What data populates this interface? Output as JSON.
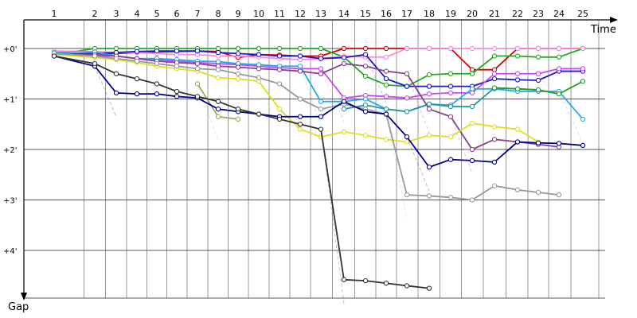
{
  "chart_data": {
    "type": "line",
    "xlabel": "Time",
    "ylabel": "Gap",
    "x_ticks": [
      "1",
      "2",
      "3",
      "4",
      "5",
      "6",
      "7",
      "8",
      "9",
      "10",
      "11",
      "12",
      "13",
      "14",
      "15",
      "16",
      "17",
      "18",
      "19",
      "20",
      "21",
      "22",
      "23",
      "24",
      "25"
    ],
    "y_ticks": [
      "+0'",
      "+1'",
      "+2'",
      "+3'",
      "+4'"
    ],
    "ylim": [
      0,
      5
    ],
    "grid": true,
    "series": [
      {
        "color": "#dd0000",
        "points": [
          [
            1,
            0.12
          ],
          [
            2,
            0.1
          ],
          [
            3,
            0.1
          ],
          [
            4,
            0.08
          ],
          [
            5,
            0.07
          ],
          [
            6,
            0.06
          ],
          [
            7,
            0.05
          ],
          [
            8,
            0.06
          ],
          [
            9,
            0.18
          ],
          [
            10,
            0.12
          ],
          [
            11,
            0.13
          ],
          [
            12,
            0.15
          ],
          [
            13,
            0.15
          ],
          [
            14,
            0.0
          ],
          [
            15,
            0.0
          ],
          [
            16,
            0.0
          ],
          [
            17,
            0.0
          ],
          [
            18,
            0.0
          ],
          [
            19,
            0.0
          ],
          [
            20,
            0.42
          ],
          [
            21,
            0.42
          ],
          [
            22,
            0.0
          ],
          [
            23,
            0.0
          ],
          [
            24,
            0.0
          ],
          [
            25,
            0.0
          ]
        ]
      },
      {
        "color": "#22aa22",
        "points": [
          [
            1,
            0.12
          ],
          [
            2,
            0.0
          ],
          [
            3,
            0.0
          ],
          [
            4,
            0.0
          ],
          [
            5,
            0.0
          ],
          [
            6,
            0.0
          ],
          [
            7,
            0.0
          ],
          [
            8,
            0.0
          ],
          [
            9,
            0.0
          ],
          [
            10,
            0.0
          ],
          [
            11,
            0.0
          ],
          [
            12,
            0.0
          ],
          [
            13,
            0.0
          ],
          [
            14,
            0.17
          ],
          [
            15,
            0.55
          ],
          [
            16,
            0.72
          ],
          [
            17,
            0.75
          ],
          [
            18,
            0.52
          ],
          [
            19,
            0.5
          ],
          [
            20,
            0.5
          ],
          [
            21,
            0.15
          ],
          [
            22,
            0.15
          ],
          [
            23,
            0.17
          ],
          [
            24,
            0.17
          ],
          [
            25,
            0.0
          ]
        ]
      },
      {
        "color": "#ff88dd",
        "points": [
          [
            1,
            0.05
          ],
          [
            2,
            0.06
          ],
          [
            3,
            0.08
          ],
          [
            4,
            0.08
          ],
          [
            5,
            0.1
          ],
          [
            6,
            0.12
          ],
          [
            7,
            0.12
          ],
          [
            8,
            0.15
          ],
          [
            9,
            0.15
          ],
          [
            10,
            0.17
          ],
          [
            11,
            0.2
          ],
          [
            12,
            0.22
          ],
          [
            13,
            0.2
          ],
          [
            14,
            0.15
          ],
          [
            15,
            0.17
          ],
          [
            16,
            0.17
          ],
          [
            17,
            0.0
          ],
          [
            18,
            0.0
          ],
          [
            19,
            0.0
          ],
          [
            20,
            0.0
          ],
          [
            21,
            0.0
          ],
          [
            22,
            0.0
          ],
          [
            23,
            0.0
          ],
          [
            24,
            0.0
          ],
          [
            25,
            0.0
          ]
        ]
      },
      {
        "color": "#1a1acc",
        "points": [
          [
            1,
            0.12
          ],
          [
            2,
            0.1
          ],
          [
            3,
            0.08
          ],
          [
            4,
            0.06
          ],
          [
            5,
            0.05
          ],
          [
            6,
            0.05
          ],
          [
            7,
            0.05
          ],
          [
            8,
            0.08
          ],
          [
            9,
            0.1
          ],
          [
            10,
            0.12
          ],
          [
            11,
            0.15
          ],
          [
            12,
            0.15
          ],
          [
            13,
            0.2
          ],
          [
            14,
            0.18
          ],
          [
            15,
            0.12
          ],
          [
            16,
            0.6
          ],
          [
            17,
            0.75
          ],
          [
            18,
            0.75
          ],
          [
            19,
            0.75
          ],
          [
            20,
            0.75
          ],
          [
            21,
            0.6
          ],
          [
            22,
            0.62
          ],
          [
            23,
            0.63
          ],
          [
            24,
            0.45
          ],
          [
            25,
            0.45
          ]
        ]
      },
      {
        "color": "#cc44ff",
        "points": [
          [
            1,
            0.1
          ],
          [
            2,
            0.15
          ],
          [
            3,
            0.15
          ],
          [
            4,
            0.2
          ],
          [
            5,
            0.22
          ],
          [
            6,
            0.25
          ],
          [
            7,
            0.28
          ],
          [
            8,
            0.3
          ],
          [
            9,
            0.32
          ],
          [
            10,
            0.35
          ],
          [
            11,
            0.38
          ],
          [
            12,
            0.4
          ],
          [
            13,
            0.4
          ],
          [
            14,
            0.98
          ],
          [
            15,
            0.93
          ],
          [
            16,
            0.95
          ],
          [
            17,
            0.98
          ],
          [
            18,
            0.9
          ],
          [
            19,
            0.88
          ],
          [
            20,
            0.88
          ],
          [
            21,
            0.5
          ],
          [
            22,
            0.5
          ],
          [
            23,
            0.5
          ],
          [
            24,
            0.4
          ],
          [
            25,
            0.4
          ]
        ]
      },
      {
        "color": "#22aaee",
        "points": [
          [
            1,
            0.08
          ],
          [
            2,
            0.07
          ],
          [
            3,
            0.15
          ],
          [
            4,
            0.2
          ],
          [
            5,
            0.2
          ],
          [
            6,
            0.22
          ],
          [
            7,
            0.25
          ],
          [
            8,
            0.26
          ],
          [
            9,
            0.3
          ],
          [
            10,
            0.32
          ],
          [
            11,
            0.35
          ],
          [
            12,
            0.35
          ],
          [
            13,
            1.05
          ],
          [
            14,
            1.05
          ],
          [
            15,
            1.0
          ],
          [
            16,
            1.2
          ],
          [
            17,
            1.25
          ],
          [
            18,
            1.1
          ],
          [
            19,
            1.12
          ],
          [
            20,
            0.8
          ],
          [
            21,
            0.8
          ],
          [
            22,
            0.85
          ],
          [
            23,
            0.85
          ],
          [
            24,
            0.85
          ],
          [
            25,
            1.4
          ]
        ]
      },
      {
        "color": "#229999",
        "points": [
          [
            14,
            1.2
          ],
          [
            15,
            1.12
          ],
          [
            16,
            1.2
          ],
          [
            17,
            1.25
          ],
          [
            18,
            1.1
          ],
          [
            19,
            1.15
          ],
          [
            20,
            1.15
          ],
          [
            21,
            0.78
          ],
          [
            22,
            0.8
          ],
          [
            23,
            0.82
          ]
        ]
      },
      {
        "color": "#2a9a2a",
        "points": [
          [
            21,
            0.78
          ],
          [
            22,
            0.8
          ],
          [
            23,
            0.82
          ],
          [
            24,
            0.9
          ],
          [
            25,
            0.65
          ]
        ]
      },
      {
        "color": "#884488",
        "points": [
          [
            1,
            0.12
          ],
          [
            2,
            0.12
          ],
          [
            3,
            0.15
          ],
          [
            4,
            0.2
          ],
          [
            5,
            0.25
          ],
          [
            6,
            0.28
          ],
          [
            7,
            0.3
          ],
          [
            8,
            0.35
          ],
          [
            9,
            0.37
          ],
          [
            10,
            0.4
          ],
          [
            11,
            0.42
          ],
          [
            12,
            0.45
          ],
          [
            13,
            0.5
          ],
          [
            14,
            0.3
          ],
          [
            15,
            0.35
          ],
          [
            16,
            0.45
          ],
          [
            17,
            0.5
          ],
          [
            18,
            1.2
          ],
          [
            19,
            1.35
          ],
          [
            20,
            2.0
          ],
          [
            21,
            1.8
          ],
          [
            22,
            1.85
          ],
          [
            23,
            1.9
          ],
          [
            24,
            1.95
          ]
        ]
      },
      {
        "color": "#dddd22",
        "points": [
          [
            1,
            0.12
          ],
          [
            2,
            0.18
          ],
          [
            3,
            0.22
          ],
          [
            4,
            0.28
          ],
          [
            5,
            0.35
          ],
          [
            6,
            0.4
          ],
          [
            7,
            0.45
          ],
          [
            8,
            0.58
          ],
          [
            9,
            0.6
          ],
          [
            10,
            0.65
          ],
          [
            11,
            1.2
          ],
          [
            12,
            1.6
          ],
          [
            13,
            1.75
          ],
          [
            14,
            1.65
          ],
          [
            15,
            1.72
          ],
          [
            16,
            1.8
          ],
          [
            17,
            1.85
          ],
          [
            18,
            1.72
          ],
          [
            19,
            1.75
          ],
          [
            20,
            1.48
          ],
          [
            21,
            1.55
          ],
          [
            22,
            1.6
          ],
          [
            23,
            1.85
          ]
        ]
      },
      {
        "color": "#999999",
        "points": [
          [
            1,
            0.1
          ],
          [
            2,
            0.15
          ],
          [
            3,
            0.2
          ],
          [
            4,
            0.25
          ],
          [
            5,
            0.3
          ],
          [
            6,
            0.35
          ],
          [
            7,
            0.4
          ],
          [
            8,
            0.42
          ],
          [
            9,
            0.5
          ],
          [
            10,
            0.58
          ],
          [
            11,
            0.7
          ],
          [
            12,
            1.0
          ],
          [
            13,
            1.2
          ],
          [
            14,
            1.1
          ],
          [
            15,
            1.2
          ],
          [
            16,
            1.3
          ],
          [
            17,
            2.9
          ],
          [
            18,
            2.92
          ],
          [
            19,
            2.95
          ],
          [
            20,
            3.0
          ],
          [
            21,
            2.72
          ],
          [
            22,
            2.8
          ],
          [
            23,
            2.85
          ],
          [
            24,
            2.9
          ]
        ]
      },
      {
        "color": "#99aa66",
        "points": [
          [
            7,
            0.7
          ],
          [
            8,
            1.35
          ],
          [
            9,
            1.4
          ]
        ]
      },
      {
        "color": "#000088",
        "points": [
          [
            1,
            0.15
          ],
          [
            2,
            0.35
          ],
          [
            3,
            0.88
          ],
          [
            4,
            0.9
          ],
          [
            5,
            0.9
          ],
          [
            6,
            0.95
          ],
          [
            7,
            0.98
          ],
          [
            8,
            1.2
          ],
          [
            9,
            1.25
          ],
          [
            10,
            1.3
          ],
          [
            11,
            1.35
          ],
          [
            12,
            1.35
          ],
          [
            13,
            1.35
          ],
          [
            14,
            1.05
          ],
          [
            15,
            1.25
          ],
          [
            16,
            1.3
          ],
          [
            17,
            1.75
          ],
          [
            18,
            2.35
          ],
          [
            19,
            2.2
          ],
          [
            20,
            2.22
          ],
          [
            21,
            2.25
          ],
          [
            22,
            1.85
          ],
          [
            23,
            1.87
          ],
          [
            24,
            1.88
          ],
          [
            25,
            1.92
          ]
        ]
      },
      {
        "color": "#333333",
        "points": [
          [
            1,
            0.15
          ],
          [
            2,
            0.3
          ],
          [
            3,
            0.5
          ],
          [
            4,
            0.6
          ],
          [
            5,
            0.7
          ],
          [
            6,
            0.85
          ],
          [
            7,
            0.95
          ],
          [
            8,
            1.05
          ],
          [
            9,
            1.2
          ],
          [
            10,
            1.3
          ],
          [
            11,
            1.4
          ],
          [
            12,
            1.5
          ],
          [
            13,
            1.6
          ],
          [
            14,
            4.58
          ],
          [
            15,
            4.6
          ],
          [
            16,
            4.65
          ],
          [
            17,
            4.7
          ],
          [
            18,
            4.75
          ]
        ]
      }
    ]
  }
}
